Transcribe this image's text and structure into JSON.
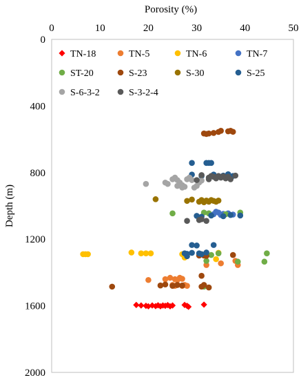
{
  "chart_data": {
    "type": "scatter",
    "xlabel": "Porosity (%)",
    "ylabel": "Depth  (m)",
    "xlim": [
      0,
      50
    ],
    "ylim": [
      0,
      2000
    ],
    "x_axis_position": "top",
    "y_axis_inverted": true,
    "grid": false,
    "legend_placement": "top-left inside",
    "x_ticks": [
      "0",
      "10",
      "20",
      "30",
      "40",
      "50"
    ],
    "y_ticks": [
      "0",
      "400",
      "800",
      "1200",
      "1600",
      "2000"
    ],
    "series": [
      {
        "name": "TN-18",
        "color": "#ff0000",
        "marker": "diamond",
        "points": [
          [
            17.5,
            1595
          ],
          [
            18.5,
            1598
          ],
          [
            19.5,
            1600
          ],
          [
            20.0,
            1603
          ],
          [
            20.8,
            1598
          ],
          [
            21.5,
            1602
          ],
          [
            22.0,
            1597
          ],
          [
            22.5,
            1603
          ],
          [
            23.0,
            1598
          ],
          [
            23.5,
            1600
          ],
          [
            24.0,
            1596
          ],
          [
            24.5,
            1603
          ],
          [
            25.0,
            1598
          ],
          [
            27.5,
            1595
          ],
          [
            28.0,
            1600
          ],
          [
            28.3,
            1606
          ],
          [
            31.5,
            1593
          ]
        ]
      },
      {
        "name": "TN-5",
        "color": "#ed7d31",
        "marker": "circle",
        "points": [
          [
            32.0,
            1355
          ],
          [
            20.0,
            1445
          ],
          [
            23.5,
            1440
          ],
          [
            24.5,
            1432
          ],
          [
            25.5,
            1440
          ],
          [
            26.0,
            1445
          ],
          [
            26.5,
            1432
          ],
          [
            27.0,
            1438
          ],
          [
            25.0,
            1475
          ],
          [
            25.5,
            1480
          ],
          [
            26.0,
            1475
          ],
          [
            27.0,
            1480
          ],
          [
            27.5,
            1475
          ],
          [
            28.0,
            1480
          ],
          [
            35.0,
            1345
          ],
          [
            38.0,
            1330
          ],
          [
            38.5,
            1355
          ]
        ]
      },
      {
        "name": "TN-6",
        "color": "#ffc000",
        "marker": "circle",
        "points": [
          [
            6.5,
            1290
          ],
          [
            7.0,
            1290
          ],
          [
            7.5,
            1290
          ],
          [
            16.5,
            1280
          ],
          [
            18.5,
            1285
          ],
          [
            19.5,
            1285
          ],
          [
            20.5,
            1285
          ],
          [
            27.0,
            1290
          ],
          [
            27.5,
            1310
          ],
          [
            34.0,
            1320
          ],
          [
            34.5,
            1282
          ]
        ]
      },
      {
        "name": "TN-7",
        "color": "#4472c4",
        "marker": "circle",
        "points": [
          [
            32.5,
            1045
          ],
          [
            33.5,
            1050
          ],
          [
            34.0,
            1035
          ],
          [
            34.5,
            1040
          ],
          [
            35.0,
            1055
          ],
          [
            35.5,
            1048
          ],
          [
            36.5,
            1045
          ],
          [
            37.5,
            1052
          ]
        ]
      },
      {
        "name": "ST-20",
        "color": "#70ad47",
        "marker": "circle",
        "points": [
          [
            25.0,
            1045
          ],
          [
            31.5,
            1040
          ],
          [
            32.5,
            1045
          ],
          [
            36.0,
            1050
          ],
          [
            39.0,
            1040
          ],
          [
            32.0,
            1330
          ],
          [
            38.5,
            1335
          ],
          [
            44.0,
            1335
          ],
          [
            44.5,
            1285
          ],
          [
            34.5,
            1285
          ],
          [
            33.0,
            1295
          ],
          [
            31.5,
            1485
          ]
        ]
      },
      {
        "name": "S-23",
        "color": "#9e480e",
        "marker": "circle",
        "points": [
          [
            31.5,
            565
          ],
          [
            32.0,
            568
          ],
          [
            32.5,
            565
          ],
          [
            33.5,
            562
          ],
          [
            34.5,
            556
          ],
          [
            35.0,
            549
          ],
          [
            36.5,
            552
          ],
          [
            37.0,
            549
          ],
          [
            37.5,
            555
          ],
          [
            12.5,
            1485
          ],
          [
            22.5,
            1478
          ],
          [
            23.5,
            1472
          ],
          [
            25.0,
            1480
          ],
          [
            26.0,
            1475
          ],
          [
            27.0,
            1478
          ],
          [
            30.5,
            1298
          ],
          [
            31.0,
            1290
          ],
          [
            31.5,
            1298
          ],
          [
            32.0,
            1300
          ],
          [
            37.5,
            1295
          ],
          [
            31.0,
            1485
          ],
          [
            31.5,
            1475
          ],
          [
            32.5,
            1490
          ],
          [
            31.0,
            1420
          ]
        ]
      },
      {
        "name": "S-30",
        "color": "#997300",
        "marker": "circle",
        "points": [
          [
            21.5,
            960
          ],
          [
            28.0,
            970
          ],
          [
            29.0,
            962
          ],
          [
            30.5,
            975
          ],
          [
            31.0,
            965
          ],
          [
            31.5,
            978
          ],
          [
            32.0,
            968
          ],
          [
            32.5,
            975
          ],
          [
            33.0,
            965
          ],
          [
            33.5,
            970
          ],
          [
            34.0,
            975
          ],
          [
            34.5,
            968
          ]
        ]
      },
      {
        "name": "S-25",
        "color": "#255e91",
        "marker": "circle",
        "points": [
          [
            29.0,
            742
          ],
          [
            32.0,
            742
          ],
          [
            32.5,
            742
          ],
          [
            33.0,
            742
          ],
          [
            29.0,
            812
          ],
          [
            31.0,
            820
          ],
          [
            33.5,
            812
          ],
          [
            35.5,
            818
          ],
          [
            36.5,
            810
          ],
          [
            37.5,
            820
          ],
          [
            30.0,
            1060
          ],
          [
            31.0,
            1065
          ],
          [
            33.0,
            1058
          ],
          [
            35.5,
            1062
          ],
          [
            37.0,
            1055
          ],
          [
            39.0,
            1058
          ],
          [
            29.0,
            1235
          ],
          [
            30.0,
            1238
          ],
          [
            33.5,
            1235
          ],
          [
            27.5,
            1285
          ],
          [
            28.0,
            1288
          ],
          [
            29.0,
            1282
          ],
          [
            30.5,
            1285
          ],
          [
            31.0,
            1290
          ],
          [
            32.0,
            1280
          ],
          [
            28.0,
            1302
          ]
        ]
      },
      {
        "name": "S-6-3-2",
        "color": "#a5a5a5",
        "marker": "circle",
        "points": [
          [
            19.5,
            868
          ],
          [
            23.5,
            860
          ],
          [
            24.0,
            868
          ],
          [
            25.0,
            840
          ],
          [
            25.5,
            830
          ],
          [
            26.0,
            845
          ],
          [
            26.5,
            860
          ],
          [
            27.0,
            875
          ],
          [
            27.5,
            885
          ],
          [
            28.0,
            840
          ],
          [
            28.5,
            830
          ],
          [
            29.0,
            845
          ],
          [
            30.0,
            880
          ],
          [
            30.5,
            860
          ],
          [
            31.0,
            848
          ],
          [
            26.0,
            880
          ],
          [
            27.0,
            890
          ],
          [
            29.5,
            890
          ]
        ]
      },
      {
        "name": "S-3-2-4",
        "color": "#595959",
        "marker": "circle",
        "points": [
          [
            28.0,
            1090
          ],
          [
            30.5,
            1085
          ],
          [
            31.0,
            1080
          ],
          [
            32.0,
            1090
          ],
          [
            32.5,
            830
          ],
          [
            33.0,
            820
          ],
          [
            33.5,
            825
          ],
          [
            34.0,
            835
          ],
          [
            34.5,
            820
          ],
          [
            35.0,
            830
          ],
          [
            35.5,
            822
          ],
          [
            36.0,
            835
          ],
          [
            36.5,
            825
          ],
          [
            37.0,
            840
          ],
          [
            38.0,
            818
          ],
          [
            32.5,
            840
          ],
          [
            30.0,
            845
          ],
          [
            31.0,
            815
          ]
        ]
      }
    ]
  }
}
